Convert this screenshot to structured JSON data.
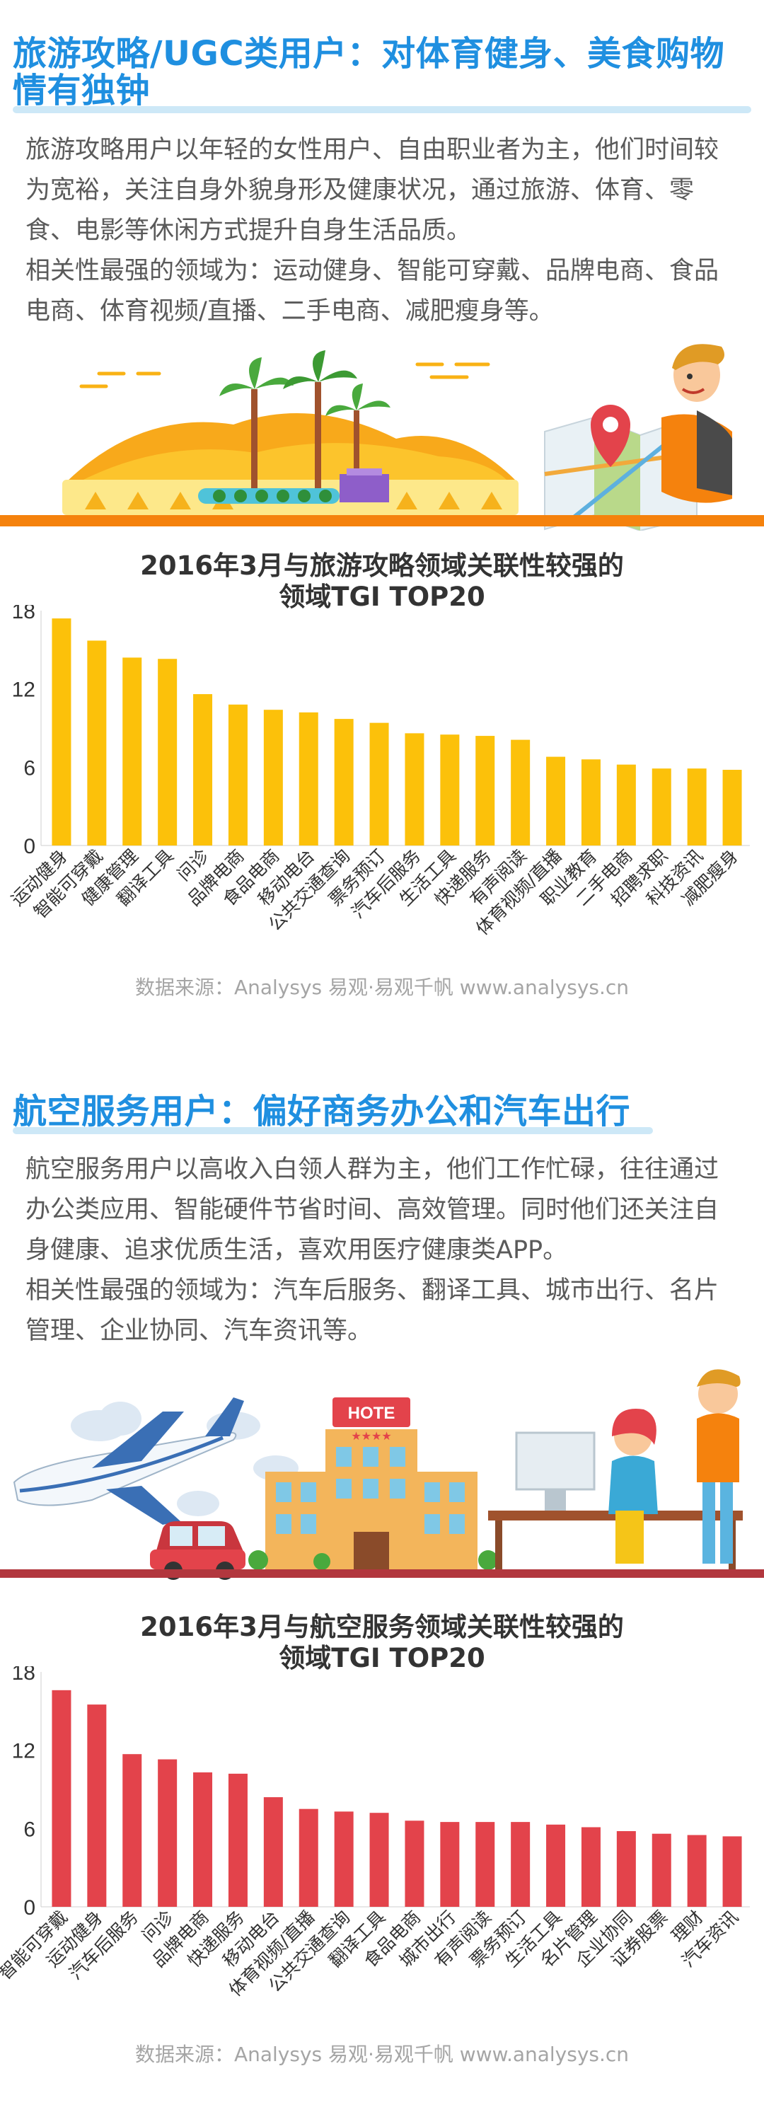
{
  "section1": {
    "title_line1": "旅游攻略/UGC类用户：对体育健身、美食购物",
    "title_line2": "情有独钟",
    "para1": "旅游攻略用户以年轻的女性用户、自由职业者为主，他们时间较为宽裕，关注自身外貌身形及健康状况，通过旅游、体育、零食、电影等休闲方式提升自身生活品质。",
    "para2": "相关性最强的领域为：运动健身、智能可穿戴、品牌电商、食品电商、体育视频/直播、二手电商、减肥瘦身等。"
  },
  "section2": {
    "title": "航空服务用户：偏好商务办公和汽车出行",
    "para1": "航空服务用户以高收入白领人群为主，他们工作忙碌，往往通过办公类应用、智能硬件节省时间、高效管理。同时他们还关注自身健康、追求优质生活，喜欢用医疗健康类APP。",
    "para2": "相关性最强的领域为：汽车后服务、翻译工具、城市出行、名片管理、企业协同、汽车资讯等。"
  },
  "chart1_title": {
    "line1": "2016年3月与旅游攻略领域关联性较强的",
    "line2": "领域TGI TOP20"
  },
  "chart2_title": {
    "line1": "2016年3月与航空服务领域关联性较强的",
    "line2": "领域TGI TOP20"
  },
  "source1": "数据来源：Analysys 易观·易观千帆 www.analysys.cn",
  "source2": "数据来源：Analysys 易观·易观千帆 www.analysys.cn",
  "illustration": {
    "hotel_sign": "HOTE",
    "hotel_stars": "★★★★"
  },
  "colors": {
    "title_blue": "#1f8fe0",
    "bar_orange": "#fcc10a",
    "bar_red": "#e3434b",
    "accent_orange": "#f5820d"
  },
  "chart_data": [
    {
      "type": "bar",
      "title": "2016年3月与旅游攻略领域关联性较强的领域TGI TOP20",
      "categories": [
        "运动健身",
        "智能可穿戴",
        "健康管理",
        "翻译工具",
        "问诊",
        "品牌电商",
        "食品电商",
        "移动电台",
        "公共交通查询",
        "票务预订",
        "汽车后服务",
        "生活工具",
        "快递服务",
        "有声阅读",
        "体育视频/直播",
        "职业教育",
        "二手电商",
        "招聘求职",
        "科技资讯",
        "减肥瘦身"
      ],
      "values": [
        17.4,
        15.7,
        14.4,
        14.3,
        11.6,
        10.8,
        10.4,
        10.2,
        9.7,
        9.4,
        8.6,
        8.5,
        8.4,
        8.1,
        6.8,
        6.6,
        6.2,
        5.9,
        5.9,
        5.8
      ],
      "ylim": [
        0,
        18
      ],
      "yticks": [
        0,
        6,
        12,
        18
      ],
      "grid": false,
      "color": "#fcc10a"
    },
    {
      "type": "bar",
      "title": "2016年3月与航空服务领域关联性较强的领域TGI TOP20",
      "categories": [
        "智能可穿戴",
        "运动健身",
        "汽车后服务",
        "问诊",
        "品牌电商",
        "快递服务",
        "移动电台",
        "体育视频/直播",
        "公共交通查询",
        "翻译工具",
        "食品电商",
        "城市出行",
        "有声阅读",
        "票务预订",
        "生活工具",
        "名片管理",
        "企业协同",
        "证券股票",
        "理财",
        "汽车资讯"
      ],
      "values": [
        16.6,
        15.5,
        11.7,
        11.3,
        10.3,
        10.2,
        8.4,
        7.5,
        7.3,
        7.2,
        6.6,
        6.5,
        6.5,
        6.5,
        6.3,
        6.1,
        5.8,
        5.6,
        5.5,
        5.4
      ],
      "ylim": [
        0,
        18
      ],
      "yticks": [
        0,
        6,
        12,
        18
      ],
      "grid": false,
      "color": "#e3434b"
    }
  ]
}
